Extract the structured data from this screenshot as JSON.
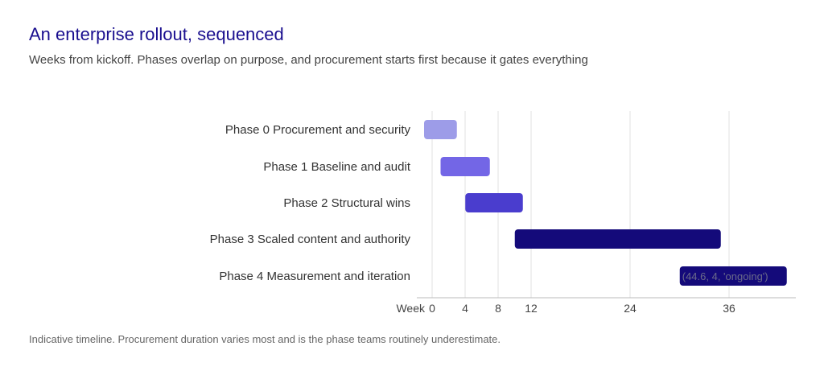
{
  "header": {
    "title": "An enterprise rollout, sequenced",
    "subtitle": "Weeks from kickoff. Phases overlap on purpose, and procurement starts first because it gates everything"
  },
  "footnote": "Indicative timeline. Procurement duration varies most and is the phase teams routinely underestimate.",
  "colors": {
    "phase0": "#9d9ce8",
    "phase1": "#7366e6",
    "phase2": "#4a3dce",
    "phase3": "#140a7a",
    "phase4": "#140a7a",
    "grid": "#e2e2e2",
    "axis": "#bbbbbb"
  },
  "chart_data": {
    "type": "bar",
    "orientation": "horizontal-gantt",
    "title": "An enterprise rollout, sequenced",
    "subtitle": "Weeks from kickoff. Phases overlap on purpose, and procurement starts first because it gates everything",
    "xlabel": "Week",
    "xlim": [
      0,
      44
    ],
    "xticks": [
      0,
      4,
      8,
      12,
      24,
      36
    ],
    "grid": true,
    "categories": [
      "Phase 0  Procurement and security",
      "Phase 1  Baseline and audit",
      "Phase 2  Structural wins",
      "Phase 3  Scaled content and authority",
      "Phase 4  Measurement and iteration"
    ],
    "series": [
      {
        "values": [
          {
            "start": 0,
            "end": 3
          },
          {
            "start": 2,
            "end": 7
          },
          {
            "start": 5,
            "end": 11
          },
          {
            "start": 11,
            "end": 35
          },
          {
            "start": 31,
            "end": 43
          }
        ]
      }
    ],
    "annotations": [
      {
        "category_index": 4,
        "text": "(44.6, 4, 'ongoing')"
      }
    ]
  }
}
